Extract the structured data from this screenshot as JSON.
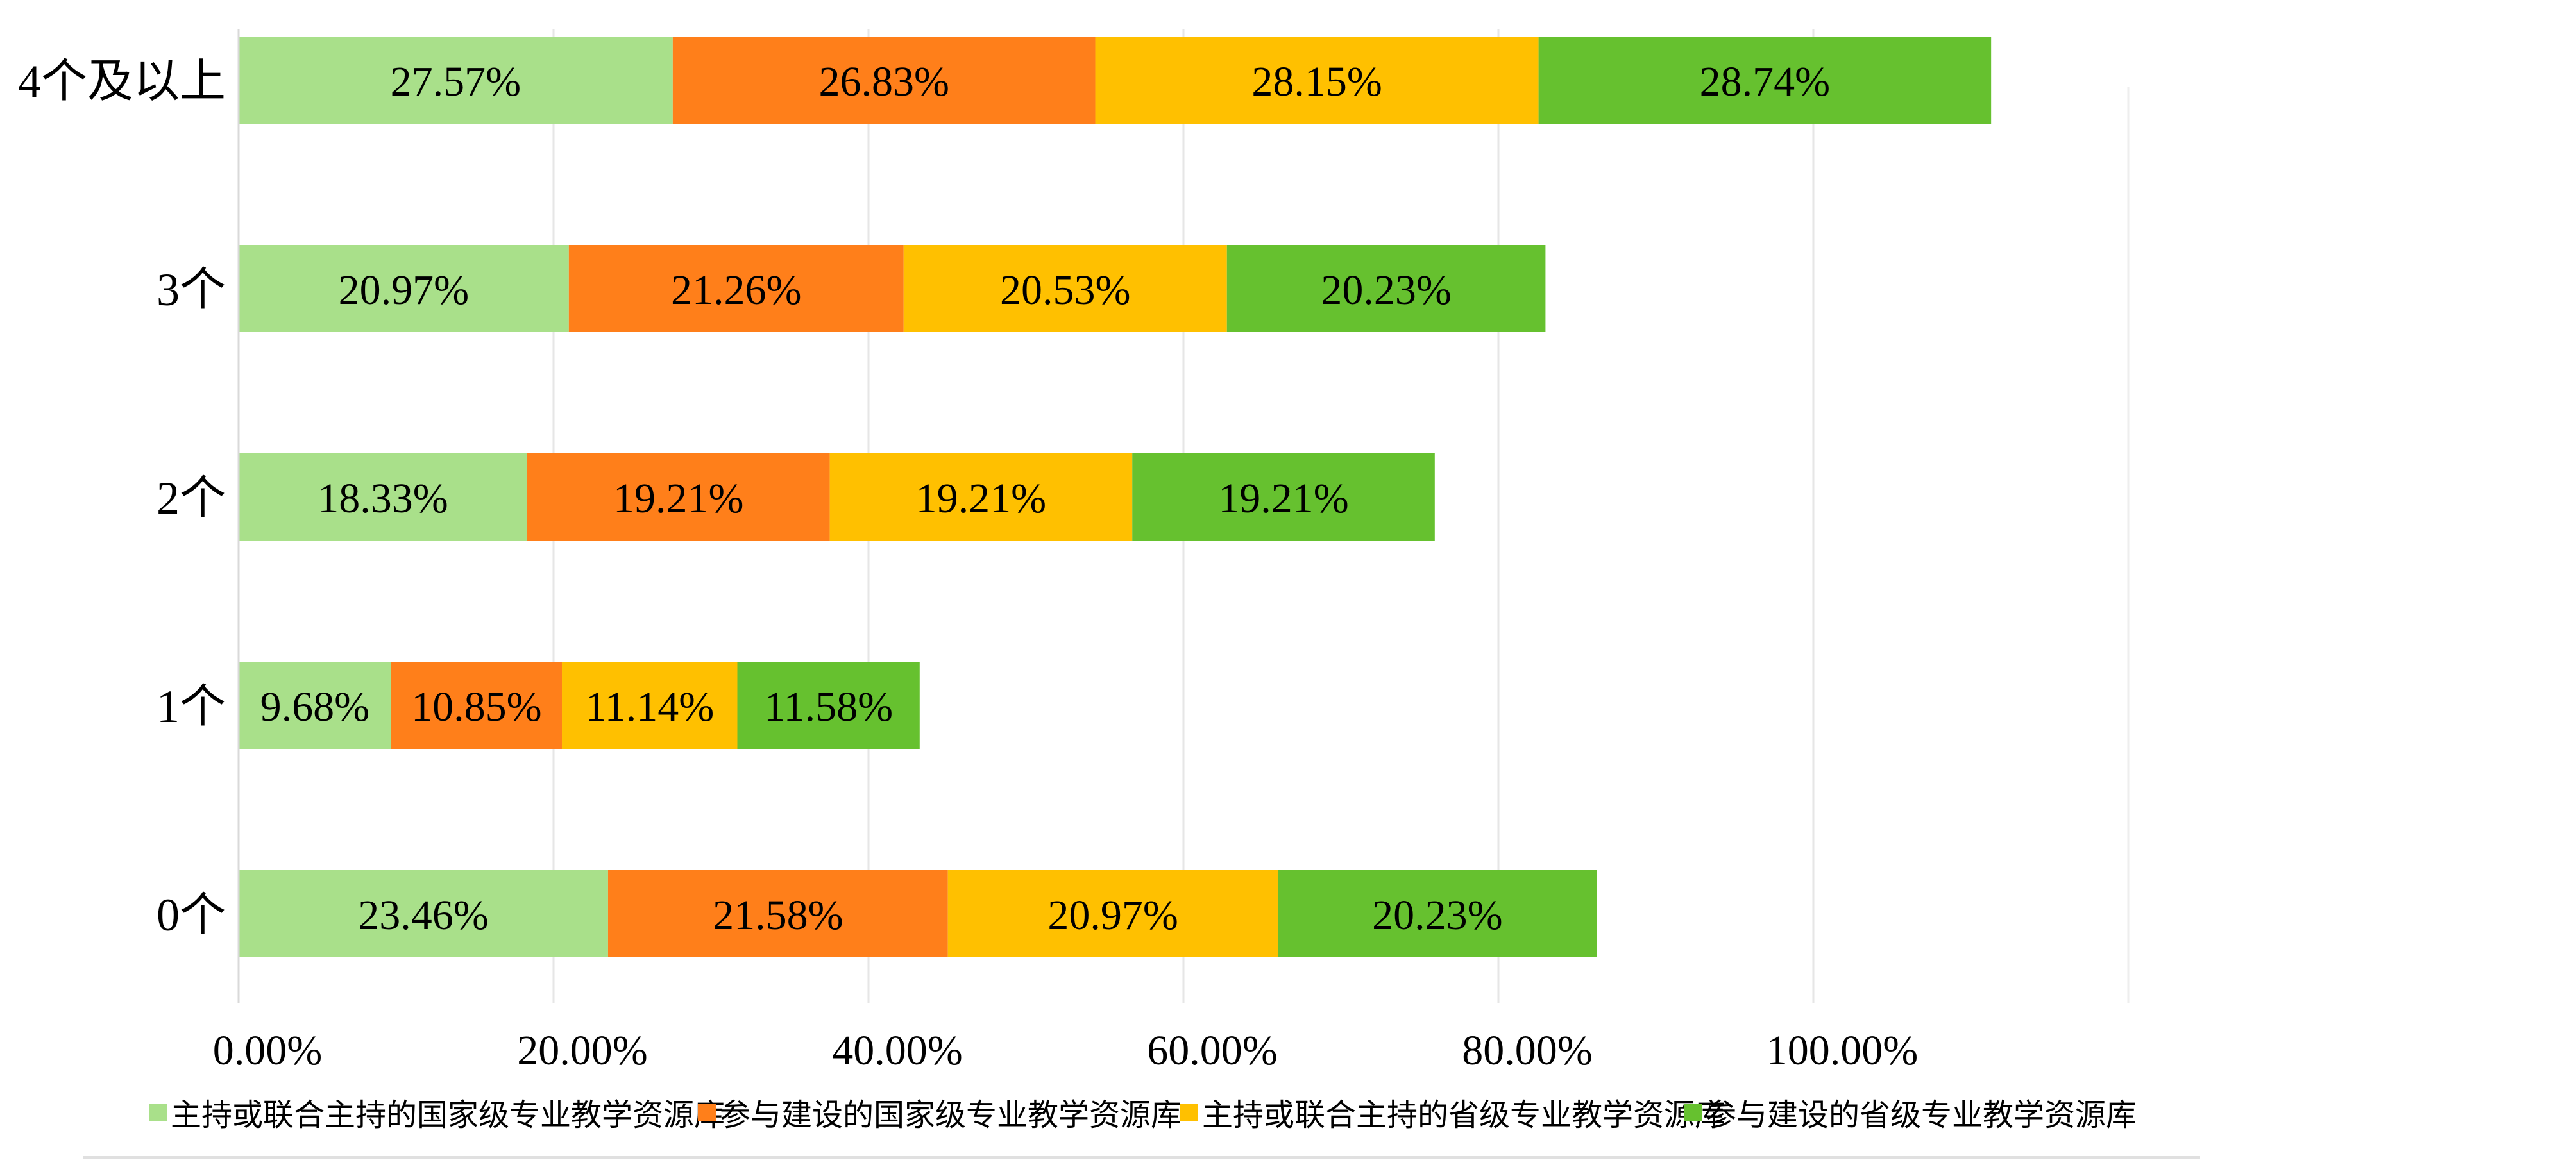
{
  "chart_data": {
    "type": "bar",
    "orientation": "horizontal",
    "stacked": true,
    "categories": [
      "0个",
      "1个",
      "2个",
      "3个",
      "4个及以上"
    ],
    "series": [
      {
        "name": "主持或联合主持的国家级专业教学资源库",
        "color": "#A9E08A",
        "values": [
          23.46,
          9.68,
          18.33,
          20.97,
          27.57
        ],
        "labels": [
          "23.46%",
          "9.68%",
          "18.33%",
          "20.97%",
          "27.57%"
        ]
      },
      {
        "name": "参与建设的国家级专业教学资源库",
        "color": "#FF7F1A",
        "values": [
          21.58,
          10.85,
          19.21,
          21.26,
          26.83
        ],
        "labels": [
          "21.58%",
          "10.85%",
          "19.21%",
          "21.26%",
          "26.83%"
        ]
      },
      {
        "name": "主持或联合主持的省级专业教学资源库",
        "color": "#FFC000",
        "values": [
          20.97,
          11.14,
          19.21,
          20.53,
          28.15
        ],
        "labels": [
          "20.97%",
          "11.14%",
          "19.21%",
          "20.53%",
          "28.15%"
        ]
      },
      {
        "name": "参与建设的省级专业教学资源库",
        "color": "#66C12F",
        "values": [
          20.23,
          11.58,
          19.21,
          20.23,
          28.74
        ],
        "labels": [
          "20.23%",
          "11.58%",
          "19.21%",
          "20.23%",
          "28.74%"
        ]
      }
    ],
    "xaxis": {
      "ticks": [
        0,
        20,
        40,
        60,
        80,
        100
      ],
      "tick_labels": [
        "0.00%",
        "20.00%",
        "40.00%",
        "60.00%",
        "80.00%",
        "100.00%"
      ],
      "range": [
        0,
        120
      ]
    },
    "grid": true,
    "legend": "bottom"
  }
}
